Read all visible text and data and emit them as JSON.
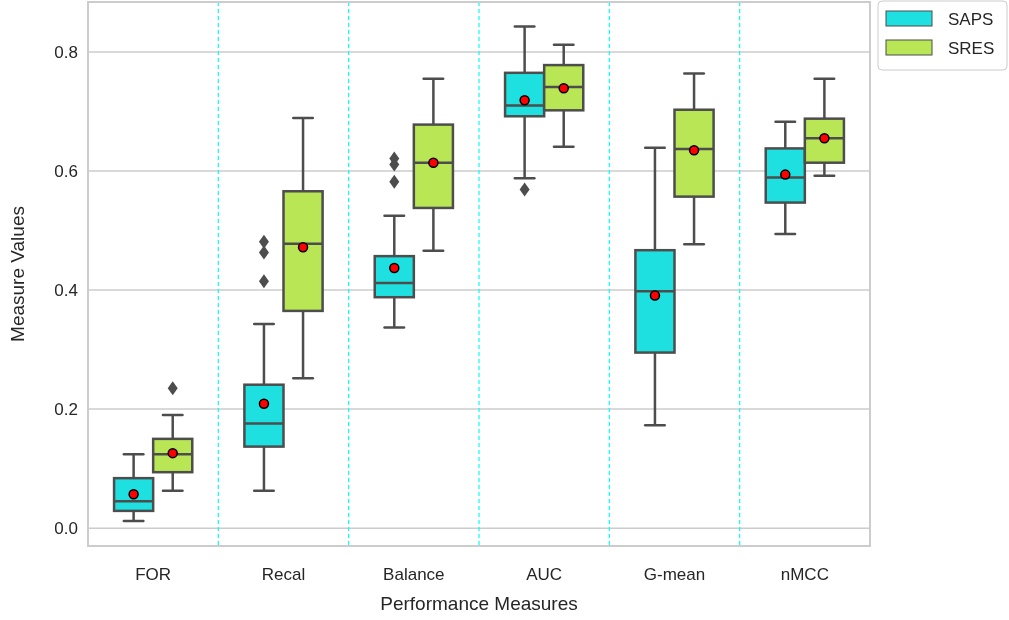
{
  "chart_data": {
    "type": "box",
    "xlabel": "Performance Measures",
    "ylabel": "Measure Values",
    "categories": [
      "FOR",
      "Recal",
      "Balance",
      "AUC",
      "G-mean",
      "nMCC"
    ],
    "ylim": [
      -0.03,
      0.884
    ],
    "yticks": [
      {
        "value": 0,
        "label": "0.0"
      },
      0.2,
      0.4,
      0.6,
      0.8
    ],
    "grid": "y",
    "legend": "top right",
    "series": [
      {
        "name": "SAPS",
        "color": "#1fe0e0",
        "boxes": [
          {
            "low": 0.012,
            "q1": 0.029,
            "median": 0.045,
            "q3": 0.084,
            "high": 0.124,
            "mean": 0.057
          },
          {
            "low": 0.063,
            "q1": 0.137,
            "median": 0.176,
            "q3": 0.241,
            "high": 0.343,
            "mean": 0.209,
            "outliers": [
              0.415,
              0.463,
              0.481
            ]
          },
          {
            "low": 0.337,
            "q1": 0.388,
            "median": 0.412,
            "q3": 0.457,
            "high": 0.525,
            "mean": 0.437,
            "outliers": [
              0.582,
              0.611,
              0.621
            ]
          },
          {
            "low": 0.588,
            "q1": 0.692,
            "median": 0.71,
            "q3": 0.765,
            "high": 0.843,
            "mean": 0.719,
            "outliers": [
              0.569
            ]
          },
          {
            "low": 0.173,
            "q1": 0.295,
            "median": 0.398,
            "q3": 0.467,
            "high": 0.639,
            "mean": 0.391
          },
          {
            "low": 0.494,
            "q1": 0.547,
            "median": 0.589,
            "q3": 0.638,
            "high": 0.683,
            "mean": 0.594
          }
        ]
      },
      {
        "name": "SRES",
        "color": "#b8e655",
        "boxes": [
          {
            "low": 0.063,
            "q1": 0.094,
            "median": 0.124,
            "q3": 0.15,
            "high": 0.19,
            "mean": 0.126,
            "outliers": [
              0.235
            ]
          },
          {
            "low": 0.252,
            "q1": 0.365,
            "median": 0.478,
            "q3": 0.566,
            "high": 0.689,
            "mean": 0.472
          },
          {
            "low": 0.466,
            "q1": 0.538,
            "median": 0.614,
            "q3": 0.678,
            "high": 0.755,
            "mean": 0.614
          },
          {
            "low": 0.641,
            "q1": 0.702,
            "median": 0.741,
            "q3": 0.778,
            "high": 0.812,
            "mean": 0.739
          },
          {
            "low": 0.477,
            "q1": 0.557,
            "median": 0.637,
            "q3": 0.703,
            "high": 0.764,
            "mean": 0.635
          },
          {
            "low": 0.592,
            "q1": 0.614,
            "median": 0.655,
            "q3": 0.688,
            "high": 0.755,
            "mean": 0.655
          }
        ]
      }
    ]
  }
}
